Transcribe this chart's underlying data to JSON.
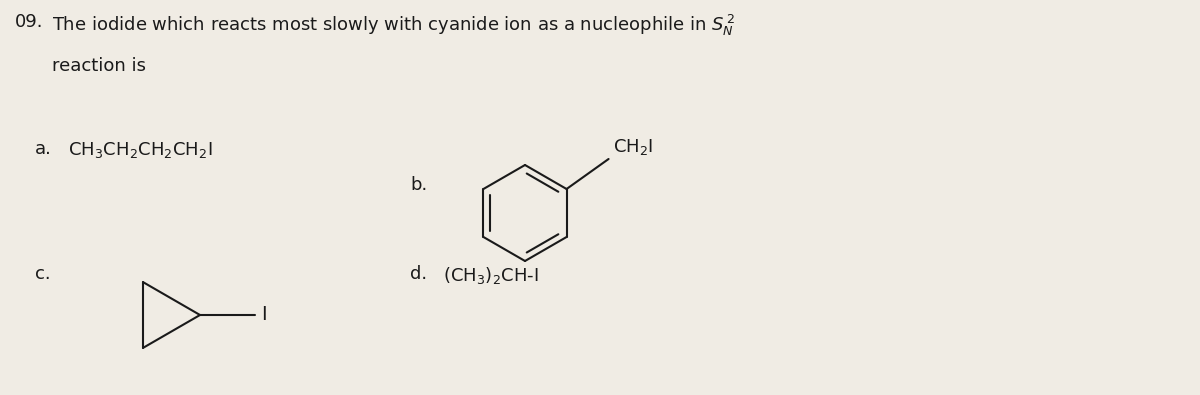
{
  "bg_color": "#f0ece4",
  "text_color": "#1a1a1a",
  "question_number": "09.",
  "question_text": "The iodide which reacts most slowly with cyanide ion as a nucleophile in $\\mathit{S}_{\\mathit{N}}^{\\mathit{2}}$",
  "question_text2": "reaction is",
  "option_a_label": "a.",
  "option_a_formula": "CH$_3$CH$_2$CH$_2$CH$_2$I",
  "option_b_label": "b.",
  "option_c_label": "c.",
  "option_d_label": "d.",
  "option_d_formula": "(CH$_3$)$_2$CH-I",
  "option_b_side_chain": "CH$_2$I",
  "font_size_question": 13,
  "font_size_options": 13,
  "lw": 1.5
}
